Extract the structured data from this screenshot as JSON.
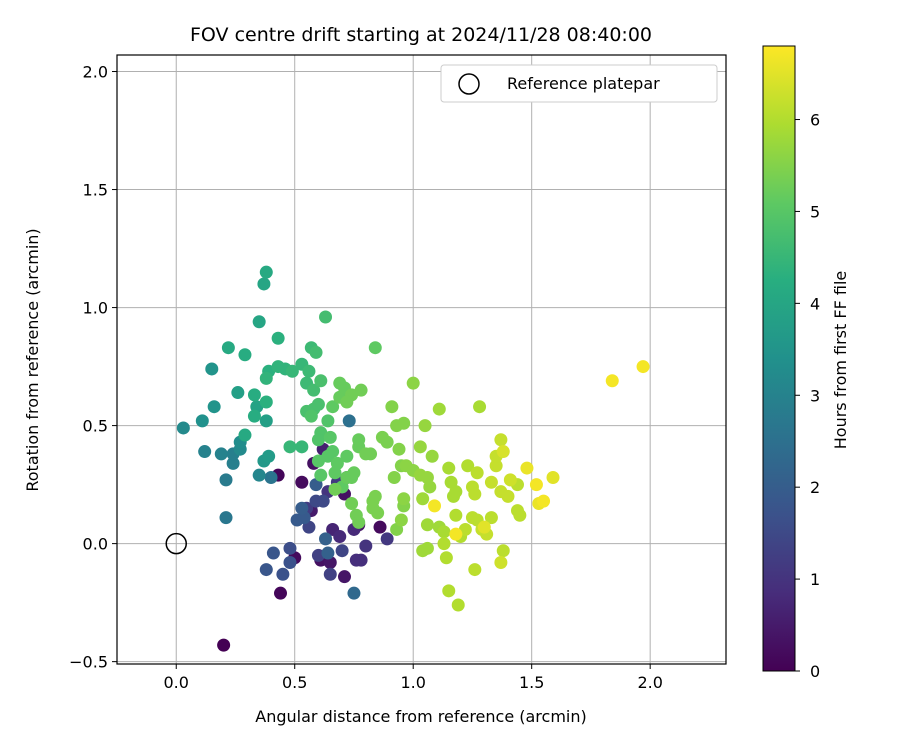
{
  "chart_data": {
    "type": "scatter",
    "title": "FOV centre drift starting at 2024/11/28 08:40:00",
    "xlabel": "Angular distance from reference (arcmin)",
    "ylabel": "Rotation from reference (arcmin)",
    "xlim": [
      -0.25,
      2.32
    ],
    "ylim": [
      -0.51,
      2.07
    ],
    "x_ticks": [
      0.0,
      0.5,
      1.0,
      1.5,
      2.0
    ],
    "x_tick_labels": [
      "0.0",
      "0.5",
      "1.0",
      "1.5",
      "2.0"
    ],
    "y_ticks": [
      -0.5,
      0.0,
      0.5,
      1.0,
      1.5,
      2.0
    ],
    "y_tick_labels": [
      "−0.5",
      "0.0",
      "0.5",
      "1.0",
      "1.5",
      "2.0"
    ],
    "grid": true,
    "colormap": "viridis",
    "colorbar": {
      "label": "Hours from first FF file",
      "range": [
        0,
        6.8
      ],
      "ticks": [
        0,
        1,
        2,
        3,
        4,
        5,
        6
      ],
      "tick_labels": [
        "0",
        "1",
        "2",
        "3",
        "4",
        "5",
        "6"
      ]
    },
    "legend": {
      "placement": "top-right",
      "entries": [
        {
          "label": "Reference platepar",
          "marker": "open-circle"
        }
      ]
    },
    "reference_point": {
      "x": 0.0,
      "y": 0.0
    },
    "points": [
      {
        "x": 0.2,
        "y": -0.43,
        "h": 0.0
      },
      {
        "x": 0.44,
        "y": -0.21,
        "h": 0.1
      },
      {
        "x": 0.43,
        "y": 0.29,
        "h": 0.1
      },
      {
        "x": 0.5,
        "y": -0.06,
        "h": 0.2
      },
      {
        "x": 0.53,
        "y": 0.26,
        "h": 0.2
      },
      {
        "x": 0.58,
        "y": 0.34,
        "h": 0.3
      },
      {
        "x": 0.61,
        "y": -0.07,
        "h": 0.3
      },
      {
        "x": 0.65,
        "y": -0.08,
        "h": 0.4
      },
      {
        "x": 0.71,
        "y": -0.14,
        "h": 0.4
      },
      {
        "x": 0.71,
        "y": 0.21,
        "h": 0.3
      },
      {
        "x": 0.77,
        "y": 0.08,
        "h": 0.3
      },
      {
        "x": 0.86,
        "y": 0.07,
        "h": 0.2
      },
      {
        "x": 0.57,
        "y": 0.14,
        "h": 0.5
      },
      {
        "x": 0.62,
        "y": 0.4,
        "h": 0.6
      },
      {
        "x": 0.66,
        "y": 0.06,
        "h": 0.7
      },
      {
        "x": 0.69,
        "y": 0.03,
        "h": 0.8
      },
      {
        "x": 0.75,
        "y": 0.06,
        "h": 0.8
      },
      {
        "x": 0.76,
        "y": -0.07,
        "h": 0.9
      },
      {
        "x": 0.78,
        "y": -0.07,
        "h": 0.9
      },
      {
        "x": 0.8,
        "y": -0.01,
        "h": 1.0
      },
      {
        "x": 0.89,
        "y": 0.02,
        "h": 1.1
      },
      {
        "x": 0.64,
        "y": 0.22,
        "h": 1.0
      },
      {
        "x": 0.68,
        "y": 0.26,
        "h": 1.1
      },
      {
        "x": 0.72,
        "y": 0.28,
        "h": 1.2
      },
      {
        "x": 0.55,
        "y": 0.15,
        "h": 1.2
      },
      {
        "x": 0.6,
        "y": -0.05,
        "h": 1.3
      },
      {
        "x": 0.65,
        "y": -0.13,
        "h": 1.3
      },
      {
        "x": 0.7,
        "y": -0.03,
        "h": 1.4
      },
      {
        "x": 0.56,
        "y": 0.07,
        "h": 1.4
      },
      {
        "x": 0.59,
        "y": 0.18,
        "h": 1.5
      },
      {
        "x": 0.62,
        "y": 0.18,
        "h": 1.5
      },
      {
        "x": 0.48,
        "y": -0.02,
        "h": 1.6
      },
      {
        "x": 0.48,
        "y": -0.08,
        "h": 1.7
      },
      {
        "x": 0.45,
        "y": -0.13,
        "h": 1.7
      },
      {
        "x": 0.41,
        "y": -0.04,
        "h": 1.8
      },
      {
        "x": 0.38,
        "y": -0.11,
        "h": 1.8
      },
      {
        "x": 0.51,
        "y": 0.1,
        "h": 1.9
      },
      {
        "x": 0.54,
        "y": 0.11,
        "h": 1.9
      },
      {
        "x": 0.53,
        "y": 0.15,
        "h": 2.0
      },
      {
        "x": 0.59,
        "y": 0.25,
        "h": 2.0
      },
      {
        "x": 0.63,
        "y": 0.02,
        "h": 2.1
      },
      {
        "x": 0.64,
        "y": -0.04,
        "h": 2.1
      },
      {
        "x": 0.75,
        "y": -0.21,
        "h": 2.3
      },
      {
        "x": 0.73,
        "y": 0.52,
        "h": 2.5
      },
      {
        "x": 0.4,
        "y": 0.28,
        "h": 2.6
      },
      {
        "x": 0.21,
        "y": 0.11,
        "h": 2.7
      },
      {
        "x": 0.21,
        "y": 0.27,
        "h": 2.8
      },
      {
        "x": 0.24,
        "y": 0.34,
        "h": 2.9
      },
      {
        "x": 0.24,
        "y": 0.38,
        "h": 2.9
      },
      {
        "x": 0.19,
        "y": 0.38,
        "h": 3.0
      },
      {
        "x": 0.12,
        "y": 0.39,
        "h": 3.0
      },
      {
        "x": 0.35,
        "y": 0.29,
        "h": 3.1
      },
      {
        "x": 0.27,
        "y": 0.4,
        "h": 3.2
      },
      {
        "x": 0.27,
        "y": 0.43,
        "h": 3.3
      },
      {
        "x": 0.03,
        "y": 0.49,
        "h": 3.2
      },
      {
        "x": 0.11,
        "y": 0.52,
        "h": 3.4
      },
      {
        "x": 0.16,
        "y": 0.58,
        "h": 3.5
      },
      {
        "x": 0.15,
        "y": 0.74,
        "h": 3.5
      },
      {
        "x": 0.37,
        "y": 0.35,
        "h": 3.6
      },
      {
        "x": 0.39,
        "y": 0.37,
        "h": 3.7
      },
      {
        "x": 0.38,
        "y": 0.52,
        "h": 3.8
      },
      {
        "x": 0.26,
        "y": 0.64,
        "h": 3.8
      },
      {
        "x": 0.34,
        "y": 0.58,
        "h": 3.9
      },
      {
        "x": 0.35,
        "y": 0.94,
        "h": 4.0
      },
      {
        "x": 0.37,
        "y": 1.1,
        "h": 4.0
      },
      {
        "x": 0.38,
        "y": 1.15,
        "h": 4.1
      },
      {
        "x": 0.22,
        "y": 0.83,
        "h": 4.1
      },
      {
        "x": 0.29,
        "y": 0.8,
        "h": 4.2
      },
      {
        "x": 0.29,
        "y": 0.46,
        "h": 4.1
      },
      {
        "x": 0.33,
        "y": 0.54,
        "h": 4.2
      },
      {
        "x": 0.33,
        "y": 0.63,
        "h": 4.2
      },
      {
        "x": 0.38,
        "y": 0.6,
        "h": 4.3
      },
      {
        "x": 0.39,
        "y": 0.73,
        "h": 4.3
      },
      {
        "x": 0.38,
        "y": 0.7,
        "h": 4.4
      },
      {
        "x": 0.43,
        "y": 0.75,
        "h": 4.4
      },
      {
        "x": 0.43,
        "y": 0.87,
        "h": 4.3
      },
      {
        "x": 0.46,
        "y": 0.74,
        "h": 4.4
      },
      {
        "x": 0.49,
        "y": 0.73,
        "h": 4.5
      },
      {
        "x": 0.48,
        "y": 0.41,
        "h": 4.5
      },
      {
        "x": 0.53,
        "y": 0.41,
        "h": 4.5
      },
      {
        "x": 0.53,
        "y": 0.76,
        "h": 4.5
      },
      {
        "x": 0.55,
        "y": 0.68,
        "h": 4.6
      },
      {
        "x": 0.56,
        "y": 0.73,
        "h": 4.6
      },
      {
        "x": 0.57,
        "y": 0.83,
        "h": 4.6
      },
      {
        "x": 0.59,
        "y": 0.81,
        "h": 4.7
      },
      {
        "x": 0.63,
        "y": 0.96,
        "h": 4.7
      },
      {
        "x": 0.58,
        "y": 0.65,
        "h": 4.7
      },
      {
        "x": 0.61,
        "y": 0.69,
        "h": 4.8
      },
      {
        "x": 0.55,
        "y": 0.56,
        "h": 4.8
      },
      {
        "x": 0.58,
        "y": 0.57,
        "h": 4.8
      },
      {
        "x": 0.6,
        "y": 0.59,
        "h": 4.8
      },
      {
        "x": 0.57,
        "y": 0.54,
        "h": 4.9
      },
      {
        "x": 0.61,
        "y": 0.47,
        "h": 4.9
      },
      {
        "x": 0.6,
        "y": 0.44,
        "h": 4.9
      },
      {
        "x": 0.64,
        "y": 0.52,
        "h": 4.9
      },
      {
        "x": 0.65,
        "y": 0.45,
        "h": 5.0
      },
      {
        "x": 0.64,
        "y": 0.37,
        "h": 5.0
      },
      {
        "x": 0.6,
        "y": 0.35,
        "h": 5.0
      },
      {
        "x": 0.61,
        "y": 0.29,
        "h": 5.0
      },
      {
        "x": 0.66,
        "y": 0.39,
        "h": 5.0
      },
      {
        "x": 0.68,
        "y": 0.34,
        "h": 5.1
      },
      {
        "x": 0.72,
        "y": 0.37,
        "h": 5.1
      },
      {
        "x": 0.67,
        "y": 0.3,
        "h": 5.1
      },
      {
        "x": 0.7,
        "y": 0.24,
        "h": 5.1
      },
      {
        "x": 0.72,
        "y": 0.28,
        "h": 5.2
      },
      {
        "x": 0.74,
        "y": 0.28,
        "h": 5.2
      },
      {
        "x": 0.75,
        "y": 0.3,
        "h": 5.2
      },
      {
        "x": 0.77,
        "y": 0.41,
        "h": 5.2
      },
      {
        "x": 0.77,
        "y": 0.44,
        "h": 5.2
      },
      {
        "x": 0.8,
        "y": 0.38,
        "h": 5.3
      },
      {
        "x": 0.82,
        "y": 0.38,
        "h": 5.3
      },
      {
        "x": 0.84,
        "y": 0.83,
        "h": 5.1
      },
      {
        "x": 0.66,
        "y": 0.58,
        "h": 5.1
      },
      {
        "x": 0.69,
        "y": 0.62,
        "h": 5.2
      },
      {
        "x": 0.69,
        "y": 0.68,
        "h": 5.2
      },
      {
        "x": 0.71,
        "y": 0.66,
        "h": 5.2
      },
      {
        "x": 0.74,
        "y": 0.63,
        "h": 5.3
      },
      {
        "x": 0.72,
        "y": 0.6,
        "h": 5.3
      },
      {
        "x": 0.78,
        "y": 0.65,
        "h": 5.3
      },
      {
        "x": 0.67,
        "y": 0.23,
        "h": 5.3
      },
      {
        "x": 0.74,
        "y": 0.17,
        "h": 5.3
      },
      {
        "x": 0.76,
        "y": 0.12,
        "h": 5.3
      },
      {
        "x": 0.77,
        "y": 0.09,
        "h": 5.3
      },
      {
        "x": 0.83,
        "y": 0.15,
        "h": 5.4
      },
      {
        "x": 0.83,
        "y": 0.18,
        "h": 5.4
      },
      {
        "x": 0.84,
        "y": 0.2,
        "h": 5.4
      },
      {
        "x": 0.85,
        "y": 0.13,
        "h": 5.4
      },
      {
        "x": 0.87,
        "y": 0.45,
        "h": 5.4
      },
      {
        "x": 0.89,
        "y": 0.43,
        "h": 5.4
      },
      {
        "x": 0.91,
        "y": 0.58,
        "h": 5.5
      },
      {
        "x": 0.93,
        "y": 0.5,
        "h": 5.5
      },
      {
        "x": 0.96,
        "y": 0.51,
        "h": 5.5
      },
      {
        "x": 0.94,
        "y": 0.4,
        "h": 5.5
      },
      {
        "x": 0.95,
        "y": 0.33,
        "h": 5.5
      },
      {
        "x": 0.97,
        "y": 0.33,
        "h": 5.6
      },
      {
        "x": 0.92,
        "y": 0.28,
        "h": 5.5
      },
      {
        "x": 0.96,
        "y": 0.16,
        "h": 5.5
      },
      {
        "x": 0.96,
        "y": 0.19,
        "h": 5.6
      },
      {
        "x": 0.95,
        "y": 0.1,
        "h": 5.6
      },
      {
        "x": 0.93,
        "y": 0.06,
        "h": 5.5
      },
      {
        "x": 1.0,
        "y": 0.68,
        "h": 5.6
      },
      {
        "x": 1.0,
        "y": 0.31,
        "h": 5.6
      },
      {
        "x": 1.03,
        "y": 0.29,
        "h": 5.7
      },
      {
        "x": 1.05,
        "y": 0.5,
        "h": 5.7
      },
      {
        "x": 1.03,
        "y": 0.41,
        "h": 5.7
      },
      {
        "x": 1.06,
        "y": 0.28,
        "h": 5.7
      },
      {
        "x": 1.07,
        "y": 0.24,
        "h": 5.7
      },
      {
        "x": 1.08,
        "y": 0.37,
        "h": 5.7
      },
      {
        "x": 1.11,
        "y": 0.57,
        "h": 5.8
      },
      {
        "x": 1.04,
        "y": 0.19,
        "h": 5.8
      },
      {
        "x": 1.06,
        "y": 0.08,
        "h": 5.8
      },
      {
        "x": 1.04,
        "y": -0.03,
        "h": 5.8
      },
      {
        "x": 1.06,
        "y": -0.02,
        "h": 5.8
      },
      {
        "x": 1.11,
        "y": 0.07,
        "h": 5.8
      },
      {
        "x": 1.13,
        "y": 0.05,
        "h": 5.9
      },
      {
        "x": 1.15,
        "y": 0.32,
        "h": 5.9
      },
      {
        "x": 1.16,
        "y": 0.26,
        "h": 5.9
      },
      {
        "x": 1.17,
        "y": 0.2,
        "h": 5.9
      },
      {
        "x": 1.18,
        "y": 0.22,
        "h": 5.9
      },
      {
        "x": 1.18,
        "y": 0.12,
        "h": 6.0
      },
      {
        "x": 1.13,
        "y": 0.0,
        "h": 6.0
      },
      {
        "x": 1.14,
        "y": -0.06,
        "h": 6.0
      },
      {
        "x": 1.15,
        "y": -0.2,
        "h": 6.0
      },
      {
        "x": 1.19,
        "y": -0.26,
        "h": 6.0
      },
      {
        "x": 1.2,
        "y": 0.03,
        "h": 6.0
      },
      {
        "x": 1.22,
        "y": 0.06,
        "h": 6.1
      },
      {
        "x": 1.23,
        "y": 0.33,
        "h": 6.0
      },
      {
        "x": 1.25,
        "y": 0.24,
        "h": 6.1
      },
      {
        "x": 1.26,
        "y": 0.21,
        "h": 6.1
      },
      {
        "x": 1.27,
        "y": 0.3,
        "h": 6.1
      },
      {
        "x": 1.28,
        "y": 0.58,
        "h": 5.9
      },
      {
        "x": 1.25,
        "y": 0.11,
        "h": 6.1
      },
      {
        "x": 1.27,
        "y": 0.1,
        "h": 6.1
      },
      {
        "x": 1.29,
        "y": 0.06,
        "h": 6.2
      },
      {
        "x": 1.31,
        "y": 0.04,
        "h": 6.2
      },
      {
        "x": 1.26,
        "y": -0.11,
        "h": 6.1
      },
      {
        "x": 1.33,
        "y": 0.11,
        "h": 6.1
      },
      {
        "x": 1.33,
        "y": 0.26,
        "h": 6.2
      },
      {
        "x": 1.35,
        "y": 0.33,
        "h": 6.2
      },
      {
        "x": 1.35,
        "y": 0.37,
        "h": 6.2
      },
      {
        "x": 1.37,
        "y": 0.44,
        "h": 6.2
      },
      {
        "x": 1.38,
        "y": 0.39,
        "h": 6.4
      },
      {
        "x": 1.37,
        "y": 0.22,
        "h": 6.2
      },
      {
        "x": 1.4,
        "y": 0.2,
        "h": 6.2
      },
      {
        "x": 1.41,
        "y": 0.27,
        "h": 6.3
      },
      {
        "x": 1.38,
        "y": -0.03,
        "h": 6.1
      },
      {
        "x": 1.37,
        "y": -0.08,
        "h": 6.3
      },
      {
        "x": 1.44,
        "y": 0.25,
        "h": 6.1
      },
      {
        "x": 1.44,
        "y": 0.14,
        "h": 6.1
      },
      {
        "x": 1.45,
        "y": 0.12,
        "h": 6.1
      },
      {
        "x": 1.48,
        "y": 0.32,
        "h": 6.6
      },
      {
        "x": 1.52,
        "y": 0.25,
        "h": 6.7
      },
      {
        "x": 1.53,
        "y": 0.17,
        "h": 6.6
      },
      {
        "x": 1.55,
        "y": 0.18,
        "h": 6.7
      },
      {
        "x": 1.59,
        "y": 0.28,
        "h": 6.5
      },
      {
        "x": 1.09,
        "y": 0.16,
        "h": 6.7
      },
      {
        "x": 1.18,
        "y": 0.04,
        "h": 6.7
      },
      {
        "x": 1.3,
        "y": 0.07,
        "h": 6.5
      },
      {
        "x": 1.84,
        "y": 0.69,
        "h": 6.7
      },
      {
        "x": 1.97,
        "y": 0.75,
        "h": 6.7
      }
    ]
  }
}
